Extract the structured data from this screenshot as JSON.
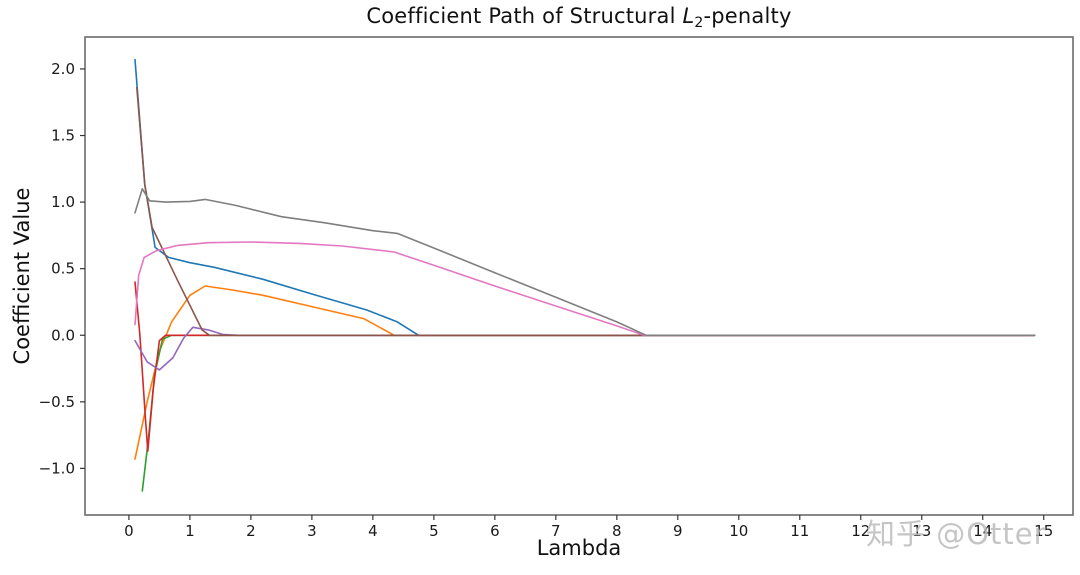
{
  "figure": {
    "title_parts": {
      "prefix": "Coefficient Path of Structural ",
      "var": "L",
      "sub": "2",
      "suffix": "-penalty"
    },
    "xlabel": "Lambda",
    "ylabel": "Coefficient Value",
    "watermark": "知乎 @Otter"
  },
  "colors": {
    "spine": "#6b6b6b",
    "tick": "#333333",
    "watermark": "#bcbcbc"
  },
  "chart_data": {
    "type": "line",
    "title": "Coefficient Path of Structural L2-penalty",
    "xlabel": "Lambda",
    "ylabel": "Coefficient Value",
    "xlim": [
      -0.72,
      15.48
    ],
    "ylim": [
      -1.35,
      2.24
    ],
    "x_ticks": [
      0,
      1,
      2,
      3,
      4,
      5,
      6,
      7,
      8,
      9,
      10,
      11,
      12,
      13,
      14,
      15
    ],
    "y_ticks": [
      -1.0,
      -0.5,
      0.0,
      0.5,
      1.0,
      1.5,
      2.0
    ],
    "grid": false,
    "legend": "none",
    "series": [
      {
        "name": "coef-1-blue",
        "color": "#1f77b4",
        "points": [
          [
            0.1,
            2.07
          ],
          [
            0.26,
            1.13
          ],
          [
            0.43,
            0.66
          ],
          [
            0.65,
            0.585
          ],
          [
            1.0,
            0.545
          ],
          [
            1.4,
            0.51
          ],
          [
            2.2,
            0.42
          ],
          [
            3.0,
            0.31
          ],
          [
            3.9,
            0.19
          ],
          [
            4.4,
            0.1
          ],
          [
            4.75,
            0.0
          ],
          [
            14.85,
            0.0
          ]
        ]
      },
      {
        "name": "coef-2-orange",
        "color": "#ff7f0e",
        "points": [
          [
            0.1,
            -0.93
          ],
          [
            0.3,
            -0.5
          ],
          [
            0.5,
            -0.12
          ],
          [
            0.7,
            0.1
          ],
          [
            1.0,
            0.3
          ],
          [
            1.25,
            0.37
          ],
          [
            1.7,
            0.34
          ],
          [
            2.2,
            0.3
          ],
          [
            3.0,
            0.215
          ],
          [
            3.85,
            0.125
          ],
          [
            4.35,
            0.0
          ],
          [
            14.85,
            0.0
          ]
        ]
      },
      {
        "name": "coef-3-green",
        "color": "#2ca02c",
        "points": [
          [
            0.22,
            -1.17
          ],
          [
            0.32,
            -0.78
          ],
          [
            0.42,
            -0.3
          ],
          [
            0.55,
            -0.03
          ],
          [
            0.7,
            0.0
          ],
          [
            14.85,
            0.0
          ]
        ]
      },
      {
        "name": "coef-4-red",
        "color": "#d62728",
        "points": [
          [
            0.1,
            0.4
          ],
          [
            0.18,
            0.0
          ],
          [
            0.27,
            -0.62
          ],
          [
            0.31,
            -0.87
          ],
          [
            0.4,
            -0.4
          ],
          [
            0.5,
            -0.04
          ],
          [
            0.6,
            0.0
          ],
          [
            14.85,
            0.0
          ]
        ]
      },
      {
        "name": "coef-5-purple",
        "color": "#9467bd",
        "points": [
          [
            0.1,
            -0.04
          ],
          [
            0.3,
            -0.2
          ],
          [
            0.5,
            -0.26
          ],
          [
            0.72,
            -0.17
          ],
          [
            0.9,
            -0.02
          ],
          [
            1.05,
            0.06
          ],
          [
            1.3,
            0.04
          ],
          [
            1.55,
            0.005
          ],
          [
            1.8,
            0.0
          ],
          [
            14.85,
            0.0
          ]
        ]
      },
      {
        "name": "coef-6-brown",
        "color": "#8c564b",
        "points": [
          [
            0.13,
            1.86
          ],
          [
            0.26,
            1.13
          ],
          [
            0.38,
            0.81
          ],
          [
            0.8,
            0.41
          ],
          [
            1.2,
            0.04
          ],
          [
            1.32,
            0.0
          ],
          [
            14.85,
            0.0
          ]
        ]
      },
      {
        "name": "coef-7-pink",
        "color": "#e377c2",
        "points": [
          [
            0.1,
            0.08
          ],
          [
            0.16,
            0.45
          ],
          [
            0.25,
            0.585
          ],
          [
            0.45,
            0.635
          ],
          [
            0.8,
            0.675
          ],
          [
            1.3,
            0.695
          ],
          [
            2.0,
            0.7
          ],
          [
            2.8,
            0.69
          ],
          [
            3.5,
            0.67
          ],
          [
            4.35,
            0.625
          ],
          [
            5.0,
            0.525
          ],
          [
            6.0,
            0.37
          ],
          [
            7.0,
            0.22
          ],
          [
            8.0,
            0.07
          ],
          [
            8.45,
            0.0
          ],
          [
            14.85,
            0.0
          ]
        ]
      },
      {
        "name": "coef-8-gray",
        "color": "#7f7f7f",
        "points": [
          [
            0.1,
            0.92
          ],
          [
            0.22,
            1.1
          ],
          [
            0.34,
            1.01
          ],
          [
            0.6,
            1.0
          ],
          [
            1.0,
            1.005
          ],
          [
            1.25,
            1.02
          ],
          [
            1.75,
            0.975
          ],
          [
            2.5,
            0.89
          ],
          [
            3.2,
            0.845
          ],
          [
            4.0,
            0.785
          ],
          [
            4.4,
            0.765
          ],
          [
            5.0,
            0.655
          ],
          [
            6.0,
            0.47
          ],
          [
            7.0,
            0.285
          ],
          [
            8.0,
            0.1
          ],
          [
            8.48,
            0.0
          ],
          [
            14.85,
            0.0
          ]
        ]
      }
    ]
  }
}
